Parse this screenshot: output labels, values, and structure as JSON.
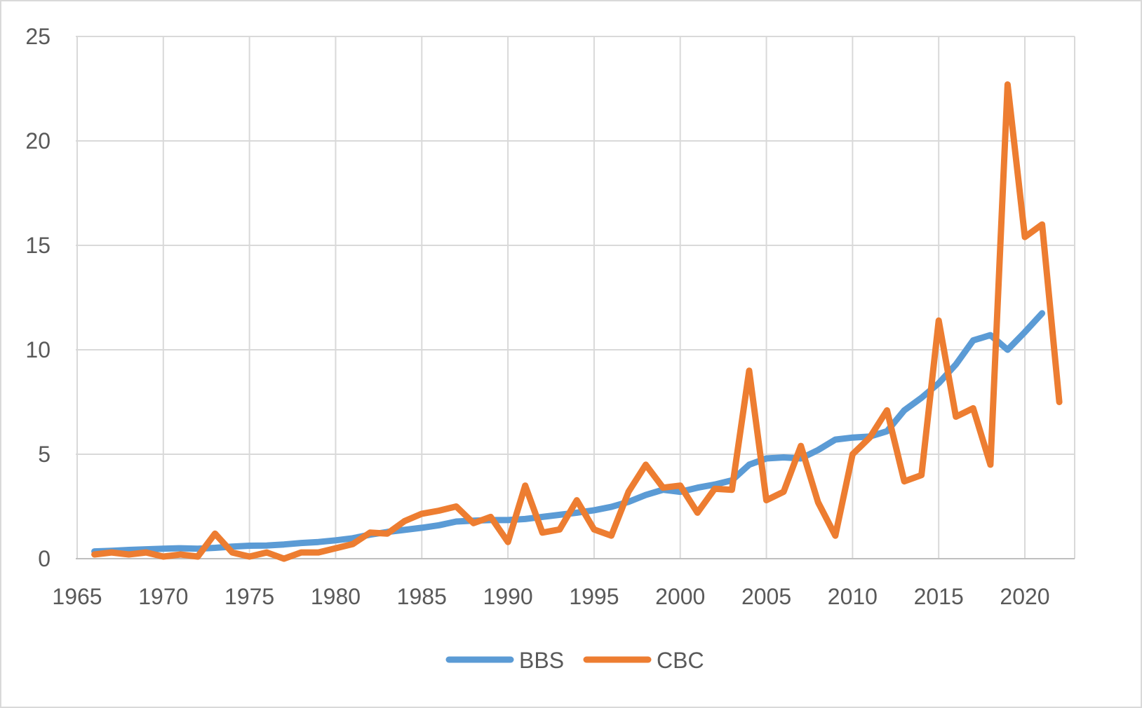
{
  "chart_data": {
    "type": "line",
    "title": "",
    "xlabel": "",
    "ylabel": "",
    "xlim": [
      1965,
      2023
    ],
    "ylim": [
      0,
      25
    ],
    "x_ticks": [
      1965,
      1970,
      1975,
      1980,
      1985,
      1990,
      1995,
      2000,
      2005,
      2010,
      2015,
      2020
    ],
    "y_ticks": [
      0,
      5,
      10,
      15,
      20,
      25
    ],
    "grid": true,
    "legend_position": "bottom",
    "series": [
      {
        "name": "BBS",
        "color": "#5b9bd5",
        "x": [
          1966,
          1967,
          1968,
          1969,
          1970,
          1971,
          1972,
          1973,
          1974,
          1975,
          1976,
          1977,
          1978,
          1979,
          1980,
          1981,
          1982,
          1983,
          1984,
          1985,
          1986,
          1987,
          1988,
          1989,
          1990,
          1991,
          1992,
          1993,
          1994,
          1995,
          1996,
          1997,
          1998,
          1999,
          2000,
          2001,
          2002,
          2003,
          2004,
          2005,
          2006,
          2007,
          2008,
          2009,
          2010,
          2011,
          2012,
          2013,
          2014,
          2015,
          2016,
          2017,
          2018,
          2019,
          2020,
          2021
        ],
        "y": [
          0.35,
          0.38,
          0.42,
          0.45,
          0.48,
          0.5,
          0.48,
          0.52,
          0.58,
          0.62,
          0.63,
          0.68,
          0.75,
          0.8,
          0.88,
          0.98,
          1.15,
          1.28,
          1.38,
          1.48,
          1.6,
          1.78,
          1.82,
          1.85,
          1.85,
          1.9,
          2.0,
          2.1,
          2.2,
          2.32,
          2.48,
          2.72,
          3.05,
          3.3,
          3.2,
          3.4,
          3.55,
          3.75,
          4.5,
          4.8,
          4.85,
          4.8,
          5.2,
          5.7,
          5.8,
          5.85,
          6.1,
          7.1,
          7.7,
          8.4,
          9.3,
          10.45,
          10.7,
          10.0,
          10.85,
          11.75
        ]
      },
      {
        "name": "CBC",
        "color": "#ed7d31",
        "x": [
          1966,
          1967,
          1968,
          1969,
          1970,
          1971,
          1972,
          1973,
          1974,
          1975,
          1976,
          1977,
          1978,
          1979,
          1980,
          1981,
          1982,
          1983,
          1984,
          1985,
          1986,
          1987,
          1988,
          1989,
          1990,
          1991,
          1992,
          1993,
          1994,
          1995,
          1996,
          1997,
          1998,
          1999,
          2000,
          2001,
          2002,
          2003,
          2004,
          2005,
          2006,
          2007,
          2008,
          2009,
          2010,
          2011,
          2012,
          2013,
          2014,
          2015,
          2016,
          2017,
          2018,
          2019,
          2020,
          2021,
          2022
        ],
        "y": [
          0.2,
          0.3,
          0.2,
          0.3,
          0.1,
          0.2,
          0.1,
          1.2,
          0.3,
          0.1,
          0.3,
          0.0,
          0.3,
          0.3,
          0.5,
          0.7,
          1.25,
          1.2,
          1.8,
          2.15,
          2.3,
          2.5,
          1.7,
          2.0,
          0.8,
          3.5,
          1.25,
          1.4,
          2.8,
          1.4,
          1.1,
          3.2,
          4.5,
          3.4,
          3.5,
          2.2,
          3.35,
          3.3,
          9.0,
          2.8,
          3.2,
          5.4,
          2.7,
          1.1,
          5.0,
          5.8,
          7.1,
          3.7,
          4.0,
          11.4,
          6.8,
          7.2,
          4.5,
          22.7,
          15.4,
          16.0,
          7.5
        ]
      }
    ]
  }
}
